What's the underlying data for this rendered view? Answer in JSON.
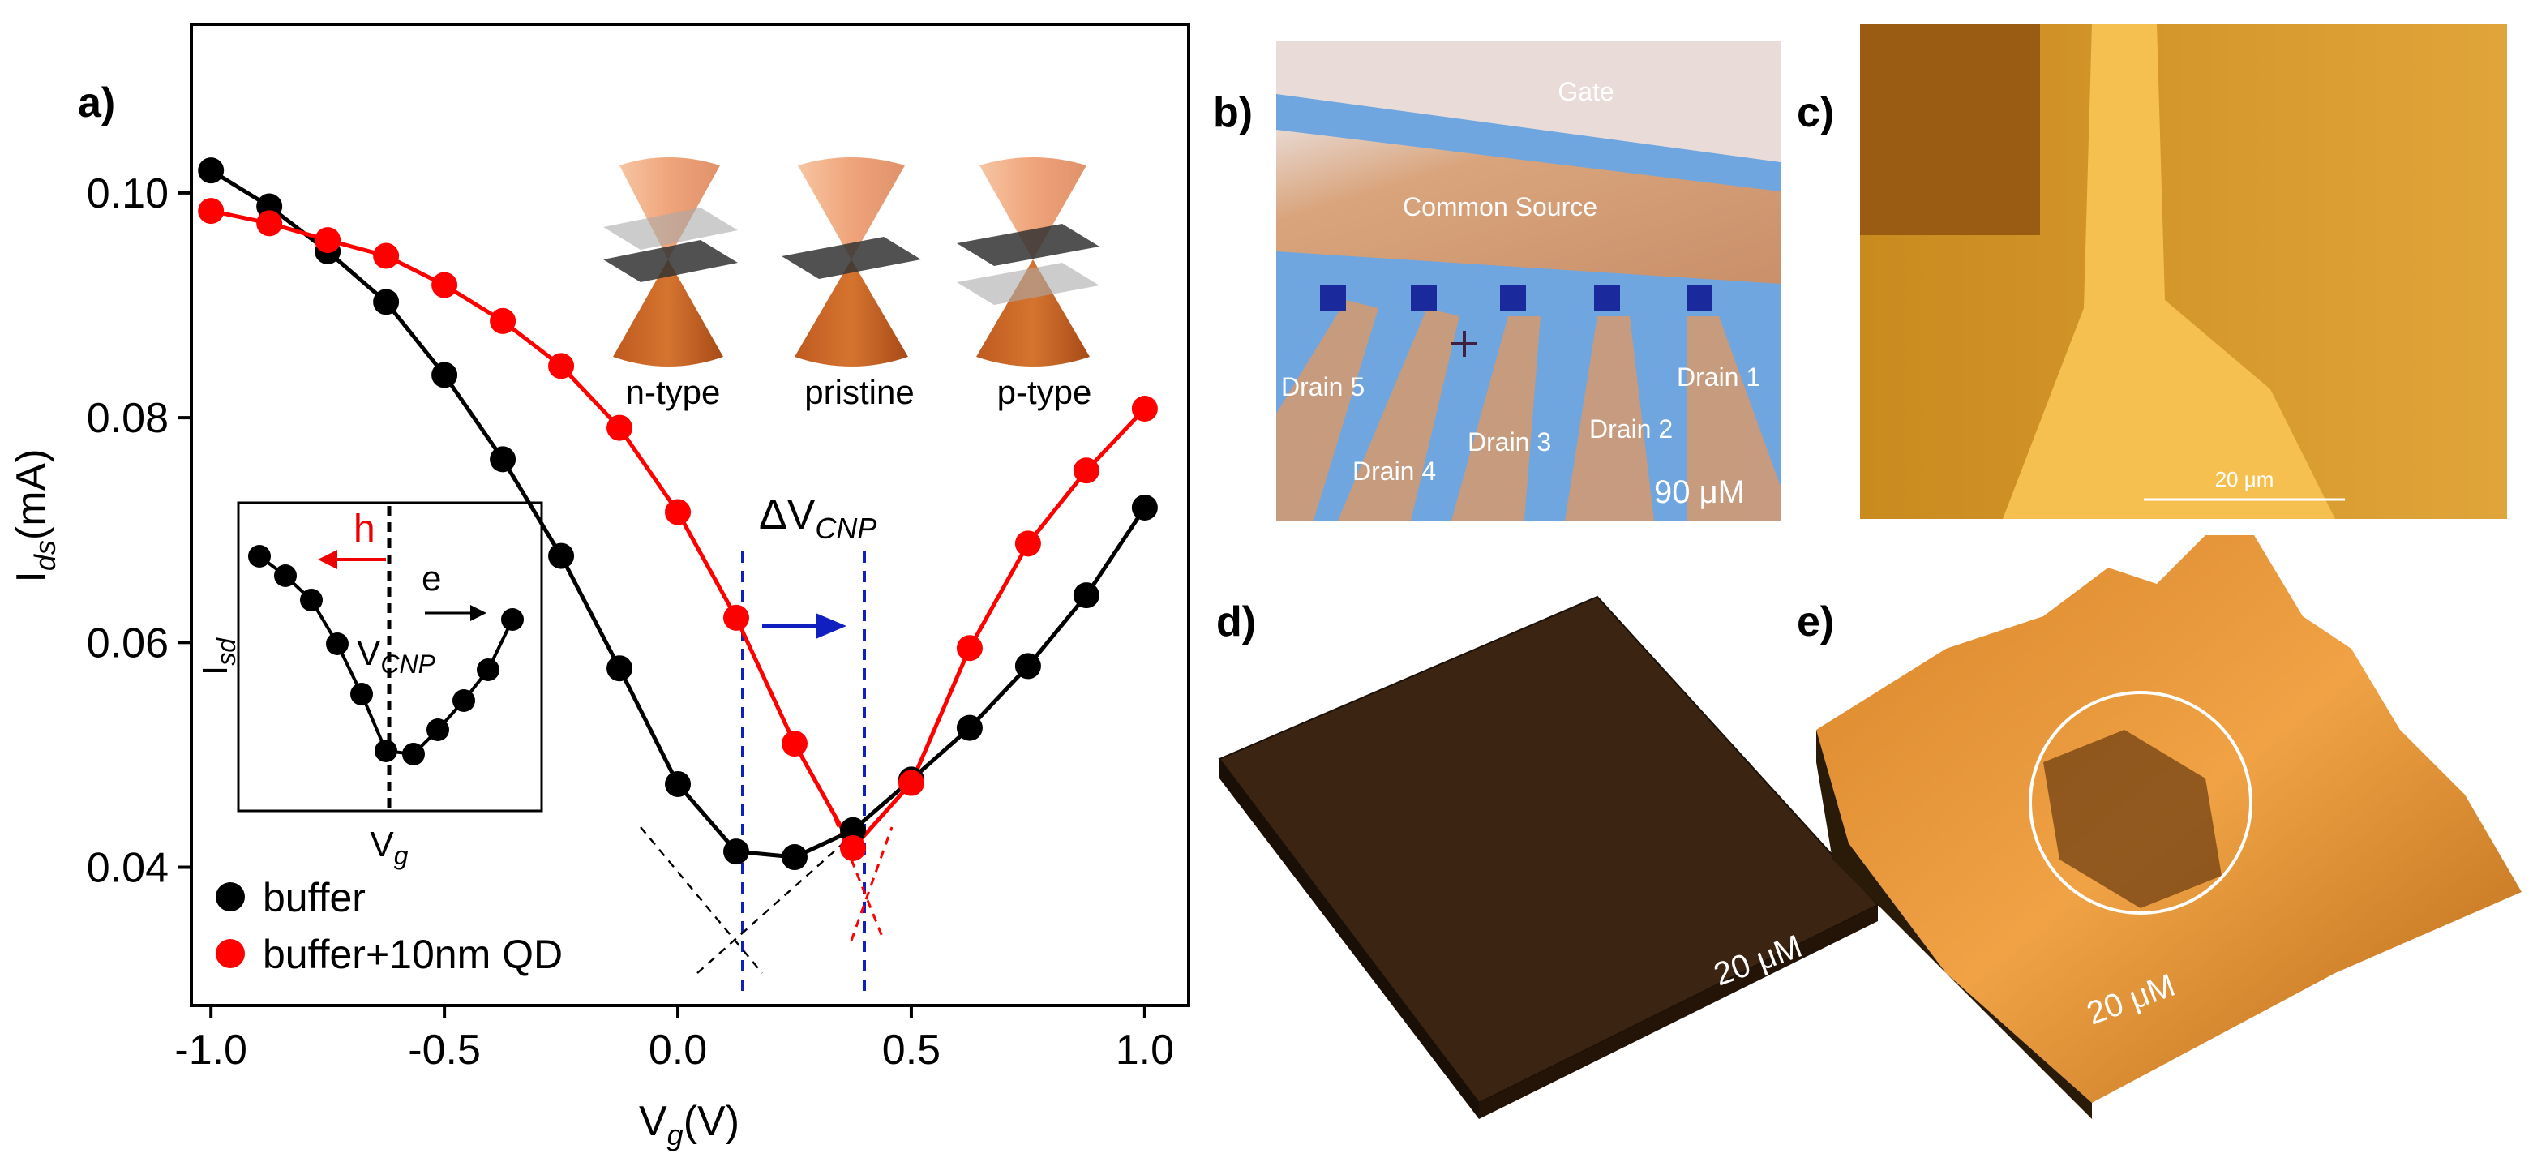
{
  "chart_data": {
    "type": "line",
    "x_label": {
      "main": "V",
      "sub": "g",
      "unit": "(V)"
    },
    "y_label": {
      "main": "I",
      "sub": "ds",
      "unit": "(mA)"
    },
    "x": [
      -1.0,
      -0.875,
      -0.75,
      -0.625,
      -0.5,
      -0.375,
      -0.25,
      -0.125,
      0.0,
      0.125,
      0.25,
      0.375,
      0.5,
      0.625,
      0.75,
      0.875,
      1.0
    ],
    "series": [
      {
        "name": "buffer",
        "color": "#000000",
        "values": [
          0.102,
          0.0988,
          0.0948,
          0.0903,
          0.0838,
          0.0763,
          0.0677,
          0.0577,
          0.0474,
          0.0414,
          0.0409,
          0.0433,
          0.0478,
          0.0524,
          0.0579,
          0.0642,
          0.072
        ]
      },
      {
        "name": "buffer+10nm QD",
        "color": "#ff0000",
        "values": [
          0.0984,
          0.0973,
          0.0958,
          0.0944,
          0.0918,
          0.0886,
          0.0846,
          0.0791,
          0.0716,
          0.0622,
          0.051,
          0.0417,
          0.0475,
          0.0595,
          0.0688,
          0.0753,
          0.0808
        ]
      }
    ],
    "xlim": [
      -1.042,
      1.094
    ],
    "ylim": [
      0.0277,
      0.115
    ],
    "xticks": [
      {
        "value": -1.0,
        "label": "-1.0"
      },
      -0.5,
      {
        "value": 0.0,
        "label": "0.0"
      },
      0.5,
      {
        "value": 1.0,
        "label": "1.0"
      }
    ],
    "yticks": [
      0.04,
      0.06,
      0.08,
      {
        "value": 0.1,
        "label": "0.10"
      }
    ],
    "legend": "lower left",
    "annotation": {
      "main": "ΔV",
      "sub": "CNP"
    }
  },
  "panels": {
    "a": "a)",
    "b": "b)",
    "c": "c)",
    "d": "d)",
    "e": "e)"
  },
  "bands": [
    "n-type",
    "pristine",
    "p-type"
  ],
  "inset": {
    "hole": "h",
    "electron": "e",
    "cnp": {
      "main": "V",
      "sub": "CNP"
    },
    "y_label": {
      "main": "I",
      "sub": "sd"
    },
    "x_label": {
      "main": "V",
      "sub": "g"
    }
  },
  "device": {
    "gate": "Gate",
    "source": "Common Source",
    "drains": [
      "Drain 1",
      "Drain 2",
      "Drain 3",
      "Drain 4",
      "Drain 5"
    ],
    "scale": "90 μM"
  },
  "afm": {
    "c_scale": "20 μm",
    "d_scale": "20 μM",
    "e_scale": "20 μM"
  }
}
